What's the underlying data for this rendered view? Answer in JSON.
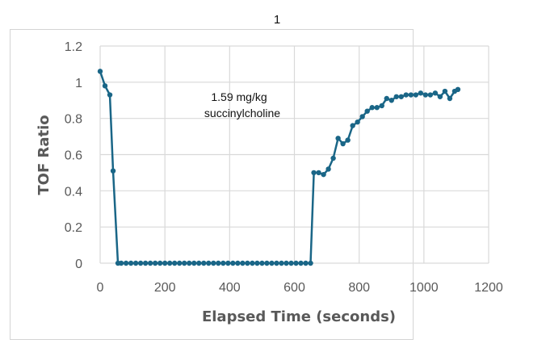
{
  "page": {
    "title": "1"
  },
  "chart_data": {
    "type": "line",
    "title": "",
    "xlabel": "Elapsed Time (seconds)",
    "ylabel": "TOF Ratio",
    "xlim": [
      0,
      1200
    ],
    "ylim": [
      0,
      1.2
    ],
    "x_ticks": [
      "0",
      "200",
      "400",
      "600",
      "800",
      "1000",
      "1200"
    ],
    "y_ticks": [
      "0",
      "0.2",
      "0.4",
      "0.6",
      "0.8",
      "1",
      "1.2"
    ],
    "grid": true,
    "legend": null,
    "annotation": {
      "line1": "1.59 mg/kg",
      "line2": "succinylcholine",
      "x": 340,
      "y": 0.94
    },
    "series": [
      {
        "name": "TOF Ratio",
        "color": "#1a6687",
        "marker": "circle",
        "x": [
          0,
          15,
          30,
          40,
          55,
          65,
          80,
          95,
          110,
          125,
          140,
          155,
          170,
          185,
          200,
          215,
          230,
          245,
          260,
          275,
          290,
          305,
          320,
          335,
          350,
          365,
          380,
          395,
          410,
          425,
          440,
          455,
          470,
          485,
          500,
          515,
          530,
          545,
          560,
          575,
          590,
          605,
          620,
          635,
          650,
          660,
          675,
          690,
          705,
          720,
          735,
          750,
          765,
          780,
          795,
          810,
          825,
          840,
          855,
          870,
          885,
          900,
          915,
          930,
          945,
          960,
          975,
          990,
          1005,
          1020,
          1035,
          1050,
          1065,
          1080,
          1095,
          1105
        ],
        "y": [
          1.06,
          0.98,
          0.93,
          0.51,
          0.0,
          0.0,
          0.0,
          0.0,
          0.0,
          0.0,
          0.0,
          0.0,
          0.0,
          0.0,
          0.0,
          0.0,
          0.0,
          0.0,
          0.0,
          0.0,
          0.0,
          0.0,
          0.0,
          0.0,
          0.0,
          0.0,
          0.0,
          0.0,
          0.0,
          0.0,
          0.0,
          0.0,
          0.0,
          0.0,
          0.0,
          0.0,
          0.0,
          0.0,
          0.0,
          0.0,
          0.0,
          0.0,
          0.0,
          0.0,
          0.0,
          0.5,
          0.5,
          0.49,
          0.52,
          0.58,
          0.69,
          0.66,
          0.68,
          0.76,
          0.78,
          0.81,
          0.84,
          0.86,
          0.86,
          0.87,
          0.91,
          0.9,
          0.92,
          0.92,
          0.93,
          0.93,
          0.93,
          0.94,
          0.93,
          0.93,
          0.94,
          0.92,
          0.95,
          0.91,
          0.95,
          0.96
        ]
      }
    ]
  }
}
